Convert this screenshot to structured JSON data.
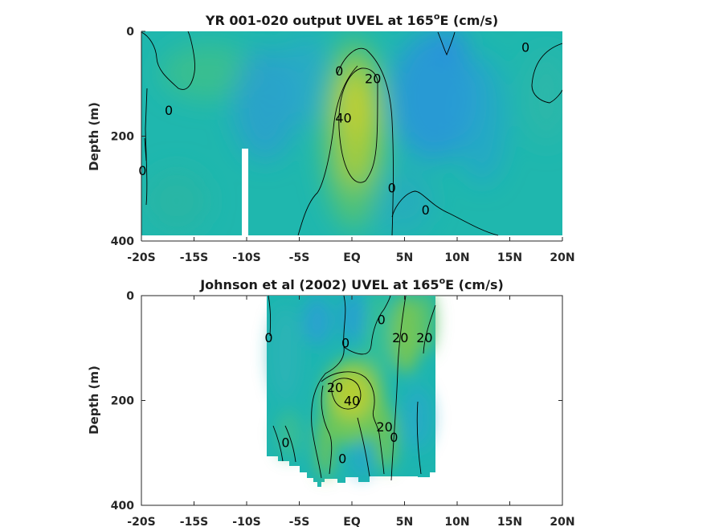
{
  "chart_data": [
    {
      "type": "contour",
      "title_prefix": "YR 001-020 output UVEL at 165",
      "title_sup": "o",
      "title_suffix": "E (cm/s)",
      "ylabel": "Depth (m)",
      "x_ticks": [
        "-20S",
        "-15S",
        "-10S",
        "-5S",
        "EQ",
        "5N",
        "10N",
        "15N",
        "20N"
      ],
      "x_tick_values": [
        -20,
        -15,
        -10,
        -5,
        0,
        5,
        10,
        15,
        20
      ],
      "xlim": [
        -20,
        20
      ],
      "y_ticks": [
        "0",
        "200",
        "400"
      ],
      "y_tick_values": [
        0,
        200,
        400
      ],
      "ylim": [
        0,
        400
      ],
      "y_reversed": true,
      "contour_labels": [
        {
          "text": "0",
          "lat": -17.4,
          "depth": 150
        },
        {
          "text": "0",
          "lat": -19.9,
          "depth": 265
        },
        {
          "text": "0",
          "lat": -1.2,
          "depth": 75
        },
        {
          "text": "20",
          "lat": 2.0,
          "depth": 90
        },
        {
          "text": "40",
          "lat": -0.8,
          "depth": 165
        },
        {
          "text": "0",
          "lat": 3.8,
          "depth": 298
        },
        {
          "text": "0",
          "lat": 7.0,
          "depth": 340
        },
        {
          "text": "0",
          "lat": 16.5,
          "depth": 30
        }
      ],
      "max_current": {
        "value": 40,
        "units": "cm/s",
        "lat": 0.5,
        "depth": 155
      }
    },
    {
      "type": "contour",
      "title_prefix": "Johnson et al (2002) UVEL at 165",
      "title_sup": "o",
      "title_suffix": "E (cm/s)",
      "ylabel": "Depth (m)",
      "x_ticks": [
        "-20S",
        "-15S",
        "-10S",
        "-5S",
        "EQ",
        "5N",
        "10N",
        "15N",
        "20N"
      ],
      "x_tick_values": [
        -20,
        -15,
        -10,
        -5,
        0,
        5,
        10,
        15,
        20
      ],
      "xlim": [
        -20,
        20
      ],
      "y_ticks": [
        "0",
        "200",
        "400"
      ],
      "y_tick_values": [
        0,
        200,
        400
      ],
      "ylim": [
        0,
        400
      ],
      "y_reversed": true,
      "data_extent_lat": [
        -8,
        8
      ],
      "contour_labels": [
        {
          "text": "0",
          "lat": -7.9,
          "depth": 80
        },
        {
          "text": "0",
          "lat": -0.6,
          "depth": 90
        },
        {
          "text": "0",
          "lat": 2.8,
          "depth": 45
        },
        {
          "text": "20",
          "lat": 4.6,
          "depth": 80
        },
        {
          "text": "20",
          "lat": 6.9,
          "depth": 80
        },
        {
          "text": "20",
          "lat": -1.6,
          "depth": 175
        },
        {
          "text": "40",
          "lat": 0.0,
          "depth": 200
        },
        {
          "text": "20",
          "lat": 3.1,
          "depth": 250
        },
        {
          "text": "0",
          "lat": 4.0,
          "depth": 270
        },
        {
          "text": "0",
          "lat": -6.3,
          "depth": 280
        },
        {
          "text": "0",
          "lat": -0.9,
          "depth": 310
        }
      ],
      "max_current": {
        "value": 40,
        "units": "cm/s",
        "lat": 0.0,
        "depth": 195
      }
    }
  ],
  "colors": {
    "background_field": "#1db8b0",
    "negative_flow": "#3aa0de",
    "positive_flow": "#a8d236",
    "max_flow": "#d7c92c",
    "contour_line": "#000000",
    "axis": "#262626"
  }
}
